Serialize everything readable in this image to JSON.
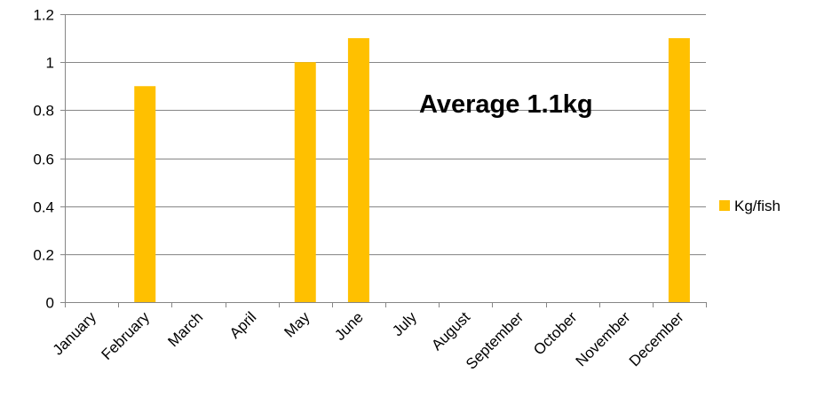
{
  "chart_data": {
    "type": "bar",
    "categories": [
      "January",
      "February",
      "March",
      "April",
      "May",
      "June",
      "July",
      "August",
      "September",
      "October",
      "November",
      "December"
    ],
    "series": [
      {
        "name": "Kg/fish",
        "color": "#FFC000",
        "values": [
          0,
          0.9,
          0,
          0,
          1.0,
          1.1,
          0,
          0,
          0,
          0,
          0,
          1.1
        ]
      }
    ],
    "ylim": [
      0,
      1.2
    ],
    "yticks": [
      "0",
      "0.2",
      "0.4",
      "0.6",
      "0.8",
      "1",
      "1.2"
    ],
    "grid": true,
    "legend_position": "right",
    "annotation": "Average 1.1kg",
    "gridline_color": "#868686"
  }
}
